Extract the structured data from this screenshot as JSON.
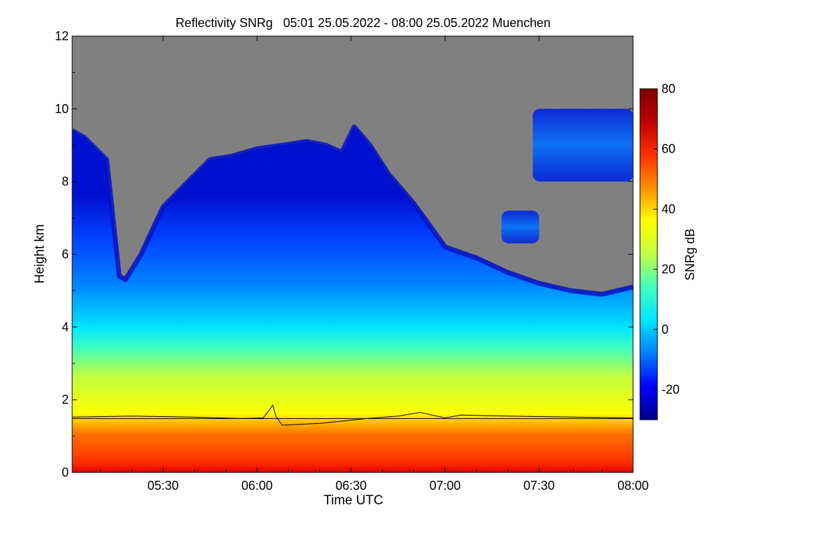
{
  "chart_data": {
    "type": "heatmap",
    "title": "Reflectivity SNRg   05:01 25.05.2022 - 08:00 25.05.2022 Muenchen",
    "xlabel": "Time UTC",
    "ylabel": "Height km",
    "colorbar_label": "SNRg dB",
    "x_range_minutes_utc": [
      301,
      480
    ],
    "y_range_km": [
      0,
      12
    ],
    "x_ticks": [
      {
        "label": "05:30",
        "minute": 330
      },
      {
        "label": "06:00",
        "minute": 360
      },
      {
        "label": "06:30",
        "minute": 390
      },
      {
        "label": "07:00",
        "minute": 420
      },
      {
        "label": "07:30",
        "minute": 450
      },
      {
        "label": "08:00",
        "minute": 480
      }
    ],
    "y_ticks": [
      0,
      2,
      4,
      6,
      8,
      10,
      12
    ],
    "colorbar_range_db": [
      -30,
      80
    ],
    "colorbar_ticks": [
      -20,
      0,
      20,
      40,
      60,
      80
    ],
    "no_signal_color": "#808080",
    "colormap": [
      "#00008a",
      "#0000ff",
      "#0080ff",
      "#00e5ff",
      "#40ffc0",
      "#c0ff40",
      "#ffff00",
      "#ff9000",
      "#ff3000",
      "#c00000",
      "#800000"
    ],
    "cloud_top_km": [
      {
        "t": 301,
        "h": 9.4
      },
      {
        "t": 305,
        "h": 9.2
      },
      {
        "t": 312,
        "h": 8.6
      },
      {
        "t": 316,
        "h": 5.4
      },
      {
        "t": 318,
        "h": 5.3
      },
      {
        "t": 323,
        "h": 6.0
      },
      {
        "t": 330,
        "h": 7.3
      },
      {
        "t": 338,
        "h": 8.0
      },
      {
        "t": 345,
        "h": 8.6
      },
      {
        "t": 352,
        "h": 8.7
      },
      {
        "t": 360,
        "h": 8.9
      },
      {
        "t": 368,
        "h": 9.0
      },
      {
        "t": 376,
        "h": 9.1
      },
      {
        "t": 382,
        "h": 9.0
      },
      {
        "t": 387,
        "h": 8.8
      },
      {
        "t": 391,
        "h": 9.5
      },
      {
        "t": 396,
        "h": 9.0
      },
      {
        "t": 402,
        "h": 8.2
      },
      {
        "t": 410,
        "h": 7.4
      },
      {
        "t": 420,
        "h": 6.2
      },
      {
        "t": 430,
        "h": 5.9
      },
      {
        "t": 440,
        "h": 5.5
      },
      {
        "t": 450,
        "h": 5.2
      },
      {
        "t": 460,
        "h": 5.0
      },
      {
        "t": 470,
        "h": 4.9
      },
      {
        "t": 480,
        "h": 5.1
      }
    ],
    "cirrus_patches": [
      {
        "t0": 448,
        "t1": 480,
        "h0": 8.0,
        "h1": 10.0
      },
      {
        "t0": 438,
        "t1": 450,
        "h0": 6.3,
        "h1": 7.2
      }
    ],
    "series": [
      {
        "name": "",
        "color": "#000000",
        "points": [
          {
            "t": 301,
            "h": 1.52
          },
          {
            "t": 320,
            "h": 1.55
          },
          {
            "t": 340,
            "h": 1.52
          },
          {
            "t": 355,
            "h": 1.48
          },
          {
            "t": 362,
            "h": 1.5
          },
          {
            "t": 365,
            "h": 1.85
          },
          {
            "t": 366,
            "h": 1.55
          },
          {
            "t": 368,
            "h": 1.3
          },
          {
            "t": 380,
            "h": 1.35
          },
          {
            "t": 395,
            "h": 1.48
          },
          {
            "t": 405,
            "h": 1.55
          },
          {
            "t": 412,
            "h": 1.65
          },
          {
            "t": 420,
            "h": 1.5
          },
          {
            "t": 425,
            "h": 1.58
          },
          {
            "t": 440,
            "h": 1.55
          },
          {
            "t": 480,
            "h": 1.5
          }
        ]
      },
      {
        "name": "",
        "color": "#000000",
        "points": [
          {
            "t": 301,
            "h": 1.48
          },
          {
            "t": 480,
            "h": 1.48
          }
        ]
      }
    ]
  }
}
